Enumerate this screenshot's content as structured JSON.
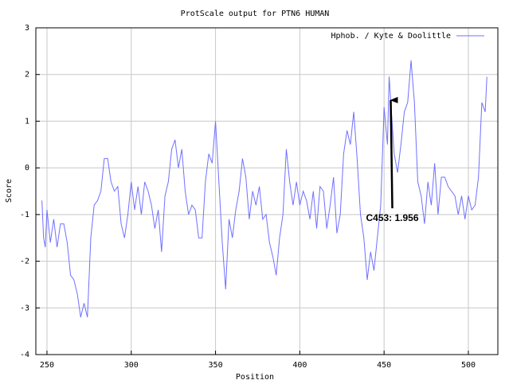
{
  "chart_data": {
    "type": "line",
    "title": "ProtScale output for PTN6 HUMAN",
    "xlabel": "Position",
    "ylabel": "Score",
    "xlim": [
      243.4,
      517.5
    ],
    "ylim": [
      -4,
      3
    ],
    "xticks": [
      250,
      300,
      350,
      400,
      450,
      500
    ],
    "yticks": [
      -4,
      -3,
      -2,
      -1,
      0,
      1,
      2,
      3
    ],
    "grid": true,
    "legend": "upper right",
    "annotation": "C453: 1.956",
    "x": [
      247,
      248,
      249,
      250,
      252,
      254,
      256,
      258,
      260,
      262,
      264,
      266,
      268,
      270,
      272,
      274,
      276,
      278,
      280,
      282,
      284,
      286,
      288,
      290,
      292,
      294,
      296,
      298,
      300,
      302,
      304,
      306,
      308,
      310,
      312,
      314,
      316,
      318,
      320,
      322,
      324,
      326,
      328,
      330,
      332,
      334,
      336,
      338,
      340,
      342,
      344,
      346,
      348,
      350,
      352,
      354,
      356,
      358,
      360,
      362,
      364,
      366,
      368,
      370,
      372,
      374,
      376,
      378,
      380,
      382,
      384,
      386,
      388,
      390,
      392,
      394,
      396,
      398,
      400,
      402,
      404,
      406,
      408,
      410,
      412,
      414,
      416,
      418,
      420,
      422,
      424,
      426,
      428,
      430,
      432,
      434,
      436,
      438,
      440,
      442,
      444,
      446,
      448,
      450,
      452,
      453,
      454,
      456,
      458,
      460,
      462,
      464,
      466,
      468,
      470,
      472,
      474,
      476,
      478,
      480,
      482,
      484,
      486,
      488,
      490,
      492,
      494,
      496,
      498,
      500,
      502,
      504,
      506,
      508,
      510,
      511
    ],
    "series": [
      {
        "name": "Hphob. / Kyte & Doolittle",
        "color": "#7070ff",
        "values": [
          -0.7,
          -1.5,
          -1.7,
          -0.9,
          -1.6,
          -1.1,
          -1.7,
          -1.2,
          -1.2,
          -1.6,
          -2.3,
          -2.4,
          -2.7,
          -3.2,
          -2.9,
          -3.2,
          -1.5,
          -0.8,
          -0.7,
          -0.5,
          0.2,
          0.2,
          -0.3,
          -0.5,
          -0.4,
          -1.2,
          -1.5,
          -1.0,
          -0.3,
          -0.9,
          -0.4,
          -1.0,
          -0.3,
          -0.5,
          -0.8,
          -1.3,
          -0.9,
          -1.8,
          -0.6,
          -0.3,
          0.4,
          0.6,
          0.0,
          0.4,
          -0.5,
          -1.0,
          -0.8,
          -0.9,
          -1.5,
          -1.5,
          -0.3,
          0.3,
          0.1,
          1.0,
          -0.3,
          -1.6,
          -2.6,
          -1.1,
          -1.5,
          -0.9,
          -0.5,
          0.2,
          -0.2,
          -1.1,
          -0.5,
          -0.8,
          -0.4,
          -1.1,
          -1.0,
          -1.6,
          -1.9,
          -2.3,
          -1.5,
          -1.0,
          0.4,
          -0.3,
          -0.8,
          -0.3,
          -0.8,
          -0.5,
          -0.7,
          -1.1,
          -0.5,
          -1.3,
          -0.4,
          -0.5,
          -1.3,
          -0.8,
          -0.2,
          -1.4,
          -1.0,
          0.3,
          0.8,
          0.5,
          1.2,
          0.2,
          -1.0,
          -1.5,
          -2.4,
          -1.8,
          -2.2,
          -1.5,
          -0.8,
          1.3,
          0.5,
          1.956,
          1.4,
          0.3,
          -0.1,
          0.5,
          1.2,
          1.4,
          2.3,
          1.4,
          -0.3,
          -0.6,
          -1.2,
          -0.3,
          -0.8,
          0.1,
          -1.0,
          -0.2,
          -0.2,
          -0.4,
          -0.5,
          -0.6,
          -1.0,
          -0.6,
          -1.1,
          -0.6,
          -0.9,
          -0.8,
          -0.2,
          1.4,
          1.2,
          1.95
        ]
      }
    ]
  }
}
